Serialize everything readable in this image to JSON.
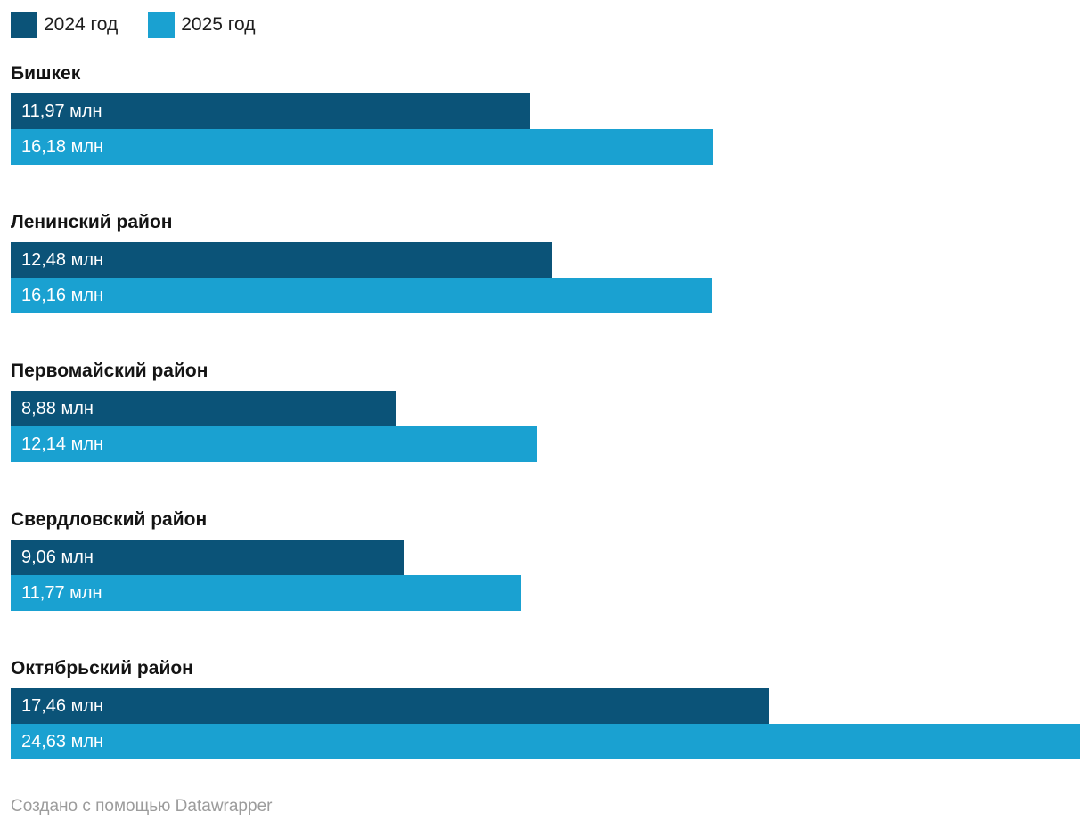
{
  "legend": {
    "items": [
      {
        "label": "2024 год",
        "color": "#0b5378"
      },
      {
        "label": "2025 год",
        "color": "#1aa1d1"
      }
    ]
  },
  "chart_data": {
    "type": "bar",
    "orientation": "horizontal",
    "grouped": true,
    "categories": [
      "Бишкек",
      "Ленинский район",
      "Первомайский район",
      "Свердловский район",
      "Октябрьский район"
    ],
    "series": [
      {
        "name": "2024 год",
        "color": "#0b5378",
        "values": [
          11.97,
          12.48,
          8.88,
          9.06,
          17.46
        ],
        "labels": [
          "11,97 млн",
          "12,48 млн",
          "8,88 млн",
          "9,06 млн",
          "17,46 млн"
        ]
      },
      {
        "name": "2025 год",
        "color": "#1aa1d1",
        "values": [
          16.18,
          16.16,
          12.14,
          11.77,
          24.63
        ],
        "labels": [
          "16,18 млн",
          "16,16 млн",
          "12,14 млн",
          "11,77 млн",
          "24,63 млн"
        ]
      }
    ],
    "unit": "млн",
    "xlim": [
      0,
      24.63
    ],
    "value_labels_inside_bars": true,
    "legend_position": "top-left",
    "grid": false
  },
  "footer": {
    "attribution": "Создано с помощью Datawrapper"
  }
}
